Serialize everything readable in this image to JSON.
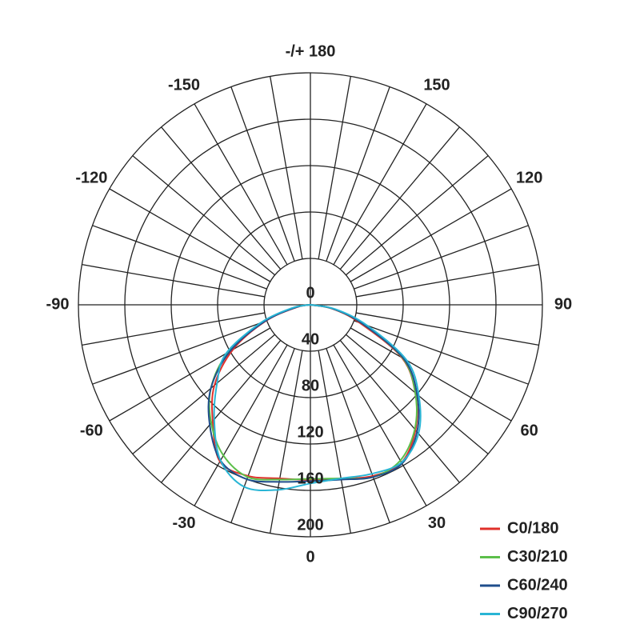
{
  "chart_data": {
    "type": "polar",
    "theta": [
      -90,
      -80,
      -70,
      -60,
      -50,
      -40,
      -30,
      -20,
      -10,
      0,
      10,
      20,
      30,
      40,
      50,
      60,
      70,
      80,
      90
    ],
    "series": [
      {
        "name": "C0/180",
        "color": "#e0302a",
        "values": [
          0,
          12,
          41,
          77,
          108,
          131,
          156,
          157,
          152,
          151,
          152,
          157,
          157,
          141,
          118,
          91,
          45,
          19,
          0
        ]
      },
      {
        "name": "C30/210",
        "color": "#5cbf4a",
        "values": [
          0,
          14,
          44,
          82,
          112,
          133,
          150,
          158,
          153,
          150,
          152,
          158,
          155,
          140,
          118,
          92,
          48,
          20,
          0
        ]
      },
      {
        "name": "C60/240",
        "color": "#1f4e8c",
        "values": [
          0,
          13,
          42,
          80,
          112,
          135,
          155,
          160,
          155,
          152,
          153,
          158,
          158,
          143,
          120,
          93,
          48,
          20,
          0
        ]
      },
      {
        "name": "C90/270",
        "color": "#29b5d5",
        "values": [
          0,
          16,
          46,
          84,
          105,
          129,
          155,
          167,
          162,
          154,
          152,
          155,
          157,
          145,
          122,
          96,
          52,
          22,
          0
        ]
      }
    ],
    "rlim": [
      0,
      200
    ],
    "rticks": [
      0,
      40,
      80,
      120,
      160,
      200
    ],
    "thetaticks": [
      0,
      30,
      60,
      90,
      120,
      150,
      {
        "value": 180,
        "label": "-/+ 180"
      },
      -150,
      -120,
      -90,
      -60,
      -30
    ],
    "grid": true,
    "legend": "lower right"
  }
}
